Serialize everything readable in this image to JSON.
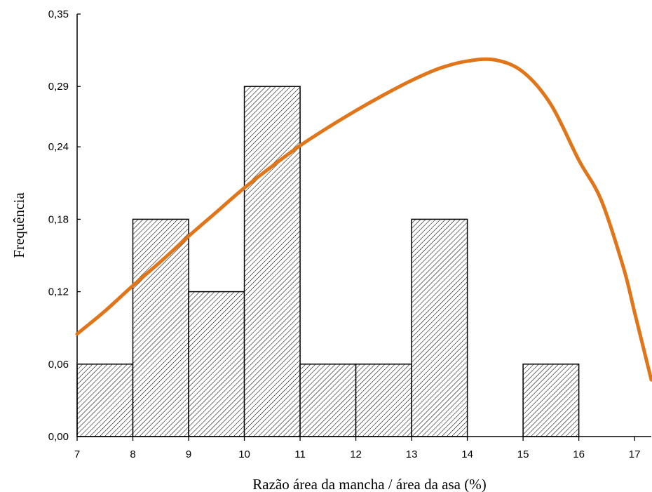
{
  "chart_data": {
    "type": "bar",
    "xlabel": "Razão área da mancha / área da asa (%)",
    "ylabel": "Frequência",
    "bin_edges": [
      7,
      8,
      9,
      10,
      11,
      12,
      13,
      14,
      15,
      16
    ],
    "values": [
      0.06,
      0.18,
      0.12,
      0.29,
      0.06,
      0.06,
      0.18,
      0,
      0.06
    ],
    "xlim": [
      7,
      17.3
    ],
    "ylim": [
      0,
      0.35
    ],
    "x_ticks": [
      7,
      8,
      9,
      10,
      11,
      12,
      13,
      14,
      15,
      16,
      17
    ],
    "y_ticks": [
      0,
      0.06,
      0.12,
      0.18,
      0.24,
      0.29,
      0.35
    ],
    "y_tick_labels": [
      "0,00",
      "0,06",
      "0,12",
      "0,18",
      "0,24",
      "0,29",
      "0,35"
    ],
    "bar_pattern": "diagonal hatch",
    "curve": {
      "color": "#e07519",
      "points": [
        [
          7.0,
          0.085
        ],
        [
          7.5,
          0.104
        ],
        [
          8.0,
          0.125
        ],
        [
          8.5,
          0.145
        ],
        [
          9.0,
          0.166
        ],
        [
          9.5,
          0.186
        ],
        [
          10.0,
          0.206
        ],
        [
          10.5,
          0.224
        ],
        [
          11.0,
          0.241
        ],
        [
          11.5,
          0.256
        ],
        [
          12.0,
          0.27
        ],
        [
          12.5,
          0.283
        ],
        [
          13.0,
          0.295
        ],
        [
          13.5,
          0.305
        ],
        [
          14.0,
          0.311
        ],
        [
          14.5,
          0.312
        ],
        [
          15.0,
          0.302
        ],
        [
          15.5,
          0.275
        ],
        [
          16.0,
          0.229
        ],
        [
          16.4,
          0.196
        ],
        [
          16.8,
          0.14
        ],
        [
          17.0,
          0.103
        ],
        [
          17.3,
          0.047
        ]
      ]
    }
  }
}
